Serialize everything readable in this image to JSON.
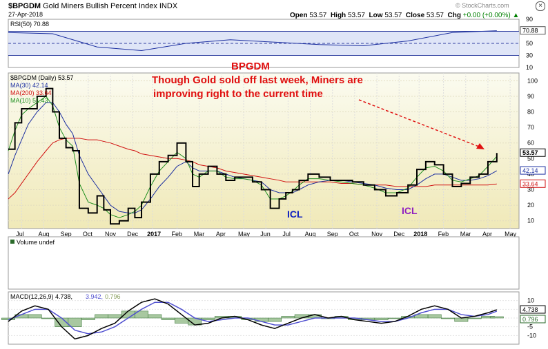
{
  "header": {
    "symbol": "$BPGDM",
    "name": "Gold Miners Bullish Percent Index",
    "exchange": "INDX",
    "date": "27-Apr-2018",
    "open_label": "Open",
    "open": "53.57",
    "high_label": "High",
    "high": "53.57",
    "low_label": "Low",
    "low": "53.57",
    "close_label": "Close",
    "close": "53.57",
    "chg_label": "Chg",
    "chg": "+0.00 (+0.00%)",
    "arrow": "▲",
    "brand": "© StockCharts.com"
  },
  "colors": {
    "price": "#000000",
    "ma30": "#1c2fa0",
    "ma200": "#d01010",
    "ma10": "#1f8f1f",
    "rsi": "#1c2fa0",
    "macd": "#000000",
    "signal": "#5050d0",
    "hist": "#2a6a2a"
  },
  "annotations": {
    "title": "BPGDM",
    "line1": "Though Gold sold off last week, Miners are",
    "line2": "improving right to the current time",
    "icl1": "ICL",
    "icl2": "ICL"
  },
  "chart_data": [
    {
      "type": "line",
      "name": "rsi-panel",
      "legend": "RSI(50) 70.88",
      "last_value": "70.88",
      "ylim": [
        10,
        90
      ],
      "ticks": [
        "90",
        "70",
        "50",
        "30",
        "10"
      ],
      "tick_values": [
        90,
        70,
        50,
        30,
        10
      ],
      "x": [
        0,
        2,
        4,
        6,
        8,
        10,
        12,
        14,
        16,
        18,
        20,
        22
      ],
      "values": [
        68,
        66,
        44,
        38,
        50,
        56,
        52,
        48,
        46,
        54,
        68,
        71
      ]
    },
    {
      "type": "line",
      "name": "price-panel",
      "legend": {
        "price": "$BPGDM (Daily) 53.57",
        "ma30": "MA(30) 42.14",
        "ma200": "MA(200) 33.64",
        "ma10": "MA(10) 51.43"
      },
      "right_labels": {
        "price": "53.57",
        "ma30": "42.14",
        "ma200": "33.64"
      },
      "ylim": [
        5,
        105
      ],
      "ticks": [
        "100",
        "90",
        "80",
        "70",
        "60",
        "50",
        "40",
        "30",
        "20",
        "10"
      ],
      "tick_values": [
        100,
        90,
        80,
        70,
        60,
        50,
        40,
        30,
        20,
        10
      ],
      "months": [
        "Jul",
        "Aug",
        "Sep",
        "Oct",
        "Nov",
        "Dec",
        "2017",
        "Feb",
        "Mar",
        "Apr",
        "May",
        "Jun",
        "Jul",
        "Aug",
        "Sep",
        "Oct",
        "Nov",
        "Dec",
        "2018",
        "Feb",
        "Mar",
        "Apr",
        "May"
      ],
      "month_pos": [
        0.6,
        1.6,
        2.6,
        3.6,
        4.6,
        5.6,
        6.5,
        7.6,
        8.6,
        9.6,
        10.6,
        11.6,
        12.6,
        13.6,
        14.6,
        15.6,
        16.6,
        17.6,
        18.5,
        19.6,
        20.6,
        21.6,
        22.6
      ],
      "x": [
        0,
        0.3,
        0.6,
        0.9,
        1.3,
        1.7,
        2.0,
        2.3,
        2.6,
        2.9,
        3.2,
        3.6,
        4.0,
        4.3,
        4.6,
        5.0,
        5.4,
        5.7,
        6.0,
        6.4,
        6.8,
        7.2,
        7.6,
        8.0,
        8.3,
        8.6,
        9.0,
        9.4,
        9.8,
        10.2,
        10.6,
        11.0,
        11.4,
        11.8,
        12.2,
        12.5,
        12.8,
        13.1,
        13.5,
        14.0,
        14.5,
        15.0,
        15.5,
        16.0,
        16.5,
        17.0,
        17.5,
        18.0,
        18.4,
        18.8,
        19.2,
        19.6,
        20.0,
        20.4,
        20.8,
        21.2,
        21.6,
        22.0
      ],
      "price": [
        56,
        73,
        82,
        82,
        90,
        95,
        80,
        63,
        57,
        55,
        18,
        15,
        26,
        17,
        8,
        10,
        18,
        12,
        22,
        40,
        48,
        52,
        60,
        48,
        32,
        40,
        45,
        40,
        36,
        38,
        38,
        35,
        30,
        18,
        24,
        28,
        30,
        36,
        40,
        38,
        36,
        36,
        35,
        33,
        30,
        26,
        28,
        33,
        43,
        48,
        46,
        40,
        32,
        34,
        38,
        40,
        48,
        53.57
      ],
      "ma10": [
        55,
        68,
        78,
        82,
        86,
        90,
        84,
        70,
        62,
        58,
        34,
        22,
        20,
        18,
        14,
        12,
        14,
        16,
        20,
        32,
        42,
        48,
        54,
        50,
        40,
        38,
        42,
        42,
        38,
        37,
        37,
        36,
        33,
        24,
        24,
        26,
        29,
        33,
        37,
        37,
        36,
        35,
        34,
        33,
        31,
        28,
        28,
        31,
        38,
        44,
        45,
        42,
        36,
        35,
        37,
        39,
        45,
        51.43
      ],
      "ma30": [
        40,
        52,
        62,
        72,
        80,
        86,
        86,
        80,
        72,
        66,
        52,
        40,
        32,
        26,
        20,
        16,
        15,
        15,
        17,
        24,
        32,
        38,
        45,
        48,
        44,
        42,
        42,
        42,
        40,
        38,
        37,
        36,
        35,
        30,
        28,
        28,
        28,
        30,
        33,
        35,
        36,
        36,
        35,
        34,
        33,
        31,
        30,
        30,
        33,
        37,
        40,
        40,
        38,
        36,
        36,
        37,
        39,
        42.14
      ],
      "ma200": [
        24,
        28,
        34,
        40,
        48,
        55,
        60,
        62,
        63,
        63,
        63,
        62,
        62,
        61,
        60,
        58,
        56,
        55,
        53,
        52,
        51,
        50,
        50,
        49,
        48,
        46,
        45,
        44,
        42,
        41,
        40,
        39,
        38,
        37,
        36,
        35,
        35,
        35,
        35,
        35,
        35,
        34,
        34,
        33,
        33,
        33,
        32,
        32,
        32,
        32,
        33,
        33,
        33,
        33,
        33,
        33,
        33,
        33.64
      ]
    },
    {
      "type": "bar",
      "name": "volume-panel",
      "legend": "Volume undef",
      "values": []
    },
    {
      "type": "line",
      "name": "macd-panel",
      "legend": {
        "macd": "MACD(12,26,9) 4.738,",
        "signal": "3.942,",
        "hist": "0.796"
      },
      "right_labels": {
        "macd": "4.738",
        "hist": "0.796"
      },
      "ylim": [
        -15,
        15
      ],
      "ticks": [
        "10",
        "5",
        "0",
        "-5",
        "-10"
      ],
      "tick_values": [
        10,
        5,
        0,
        -5,
        -10
      ],
      "x": [
        0,
        0.6,
        1.2,
        1.8,
        2.4,
        3.0,
        3.6,
        4.2,
        4.8,
        5.4,
        6.0,
        6.6,
        7.2,
        7.8,
        8.4,
        9.0,
        9.6,
        10.2,
        10.8,
        11.4,
        12.0,
        12.6,
        13.2,
        13.8,
        14.4,
        15.0,
        15.6,
        16.2,
        16.8,
        17.4,
        18.0,
        18.6,
        19.2,
        19.8,
        20.4,
        21.0,
        21.6,
        22.0
      ],
      "macd": [
        -2,
        4,
        7,
        5,
        -5,
        -12,
        -10,
        -6,
        -3,
        4,
        9,
        11,
        8,
        2,
        -4,
        -3,
        0,
        1,
        -1,
        -4,
        -6,
        -3,
        0,
        2,
        0,
        1,
        -1,
        -2,
        -3,
        -2,
        1,
        5,
        7,
        5,
        0,
        1,
        3,
        4.738
      ],
      "signal": [
        -1,
        2,
        5,
        5,
        0,
        -7,
        -9,
        -8,
        -5,
        0,
        5,
        9,
        9,
        5,
        0,
        -2,
        -1,
        0,
        0,
        -2,
        -4,
        -4,
        -2,
        0,
        0,
        0,
        0,
        -1,
        -2,
        -2,
        0,
        3,
        5,
        5,
        2,
        1,
        2,
        3.942
      ]
    }
  ]
}
